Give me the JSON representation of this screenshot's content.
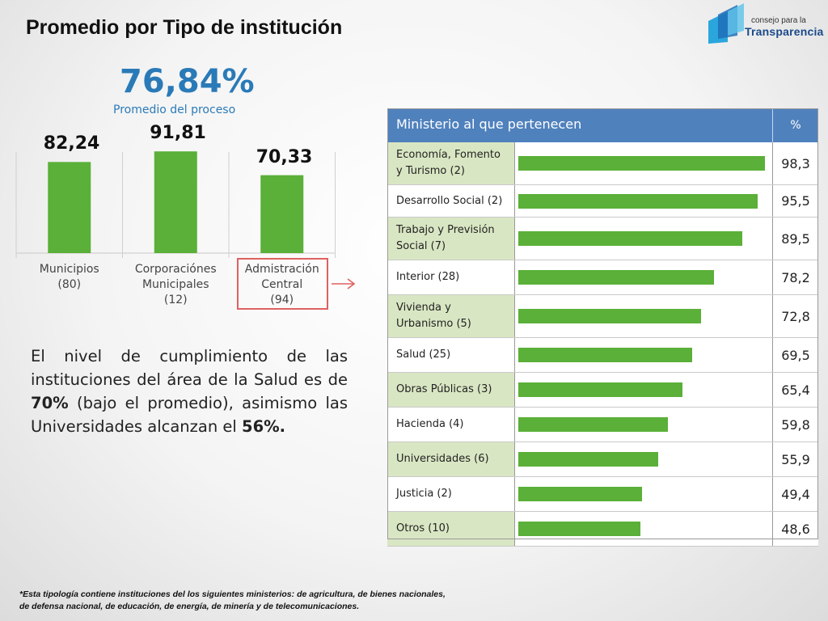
{
  "title": "Promedio por Tipo de institución",
  "logo": {
    "small": "consejo para la",
    "big": "Transparencia"
  },
  "summary": {
    "value": "76,84%",
    "label": "Promedio del proceso"
  },
  "paragraph": {
    "p1": "El nivel de cumplimiento de las instituciones del área de la Salud es de ",
    "b1": "70%",
    "p2": " (bajo el promedio), asimismo las Universidades alcanzan el ",
    "b2": "56%."
  },
  "chart_data": [
    {
      "type": "bar",
      "title": "",
      "categories": [
        "Municipios (80)",
        "Corporaciónes Municipales (12)",
        "Admistración Central (94)"
      ],
      "category_lines": [
        [
          "Municipios",
          "(80)"
        ],
        [
          "Corporaciónes",
          "Municipales",
          "(12)"
        ],
        [
          "Admistración",
          "Central",
          "(94)"
        ]
      ],
      "values": [
        82.24,
        91.81,
        70.33
      ],
      "value_labels": [
        "82,24",
        "91,81",
        "70,33"
      ],
      "ylim": [
        0,
        100
      ],
      "color": "#5ab038",
      "highlight": "Admistración Central (94)"
    },
    {
      "type": "table",
      "columns": [
        "Ministerio al que pertenecen",
        "%"
      ],
      "rows": [
        {
          "name": " Economía, Fomento y Turismo (2)",
          "value": 98.3,
          "label": "98,3"
        },
        {
          "name": "Desarrollo Social (2)",
          "value": 95.5,
          "label": "95,5"
        },
        {
          "name": "Trabajo y Previsión Social (7)",
          "value": 89.5,
          "label": "89,5"
        },
        {
          "name": "Interior (28)",
          "value": 78.2,
          "label": "78,2"
        },
        {
          "name": "Vivienda y Urbanismo (5)",
          "value": 72.8,
          "label": "72,8"
        },
        {
          "name": "Salud (25)",
          "value": 69.5,
          "label": "69,5"
        },
        {
          "name": "Obras Públicas (3)",
          "value": 65.4,
          "label": "65,4"
        },
        {
          "name": "Hacienda (4)",
          "value": 59.8,
          "label": "59,8"
        },
        {
          "name": "Universidades (6)",
          "value": 55.9,
          "label": "55,9"
        },
        {
          "name": "Justicia (2)",
          "value": 49.4,
          "label": "49,4"
        },
        {
          "name": "Otros (10)",
          "value": 48.6,
          "label": "48,6"
        }
      ],
      "max": 100,
      "color": "#5ab038"
    }
  ],
  "footnote": {
    "line1": "*Esta tipología contiene instituciones del los siguientes ministerios: de agricultura, de bienes nacionales,",
    "line2": "de defensa nacional, de educación, de energía, de minería y de telecomunicaciones."
  }
}
